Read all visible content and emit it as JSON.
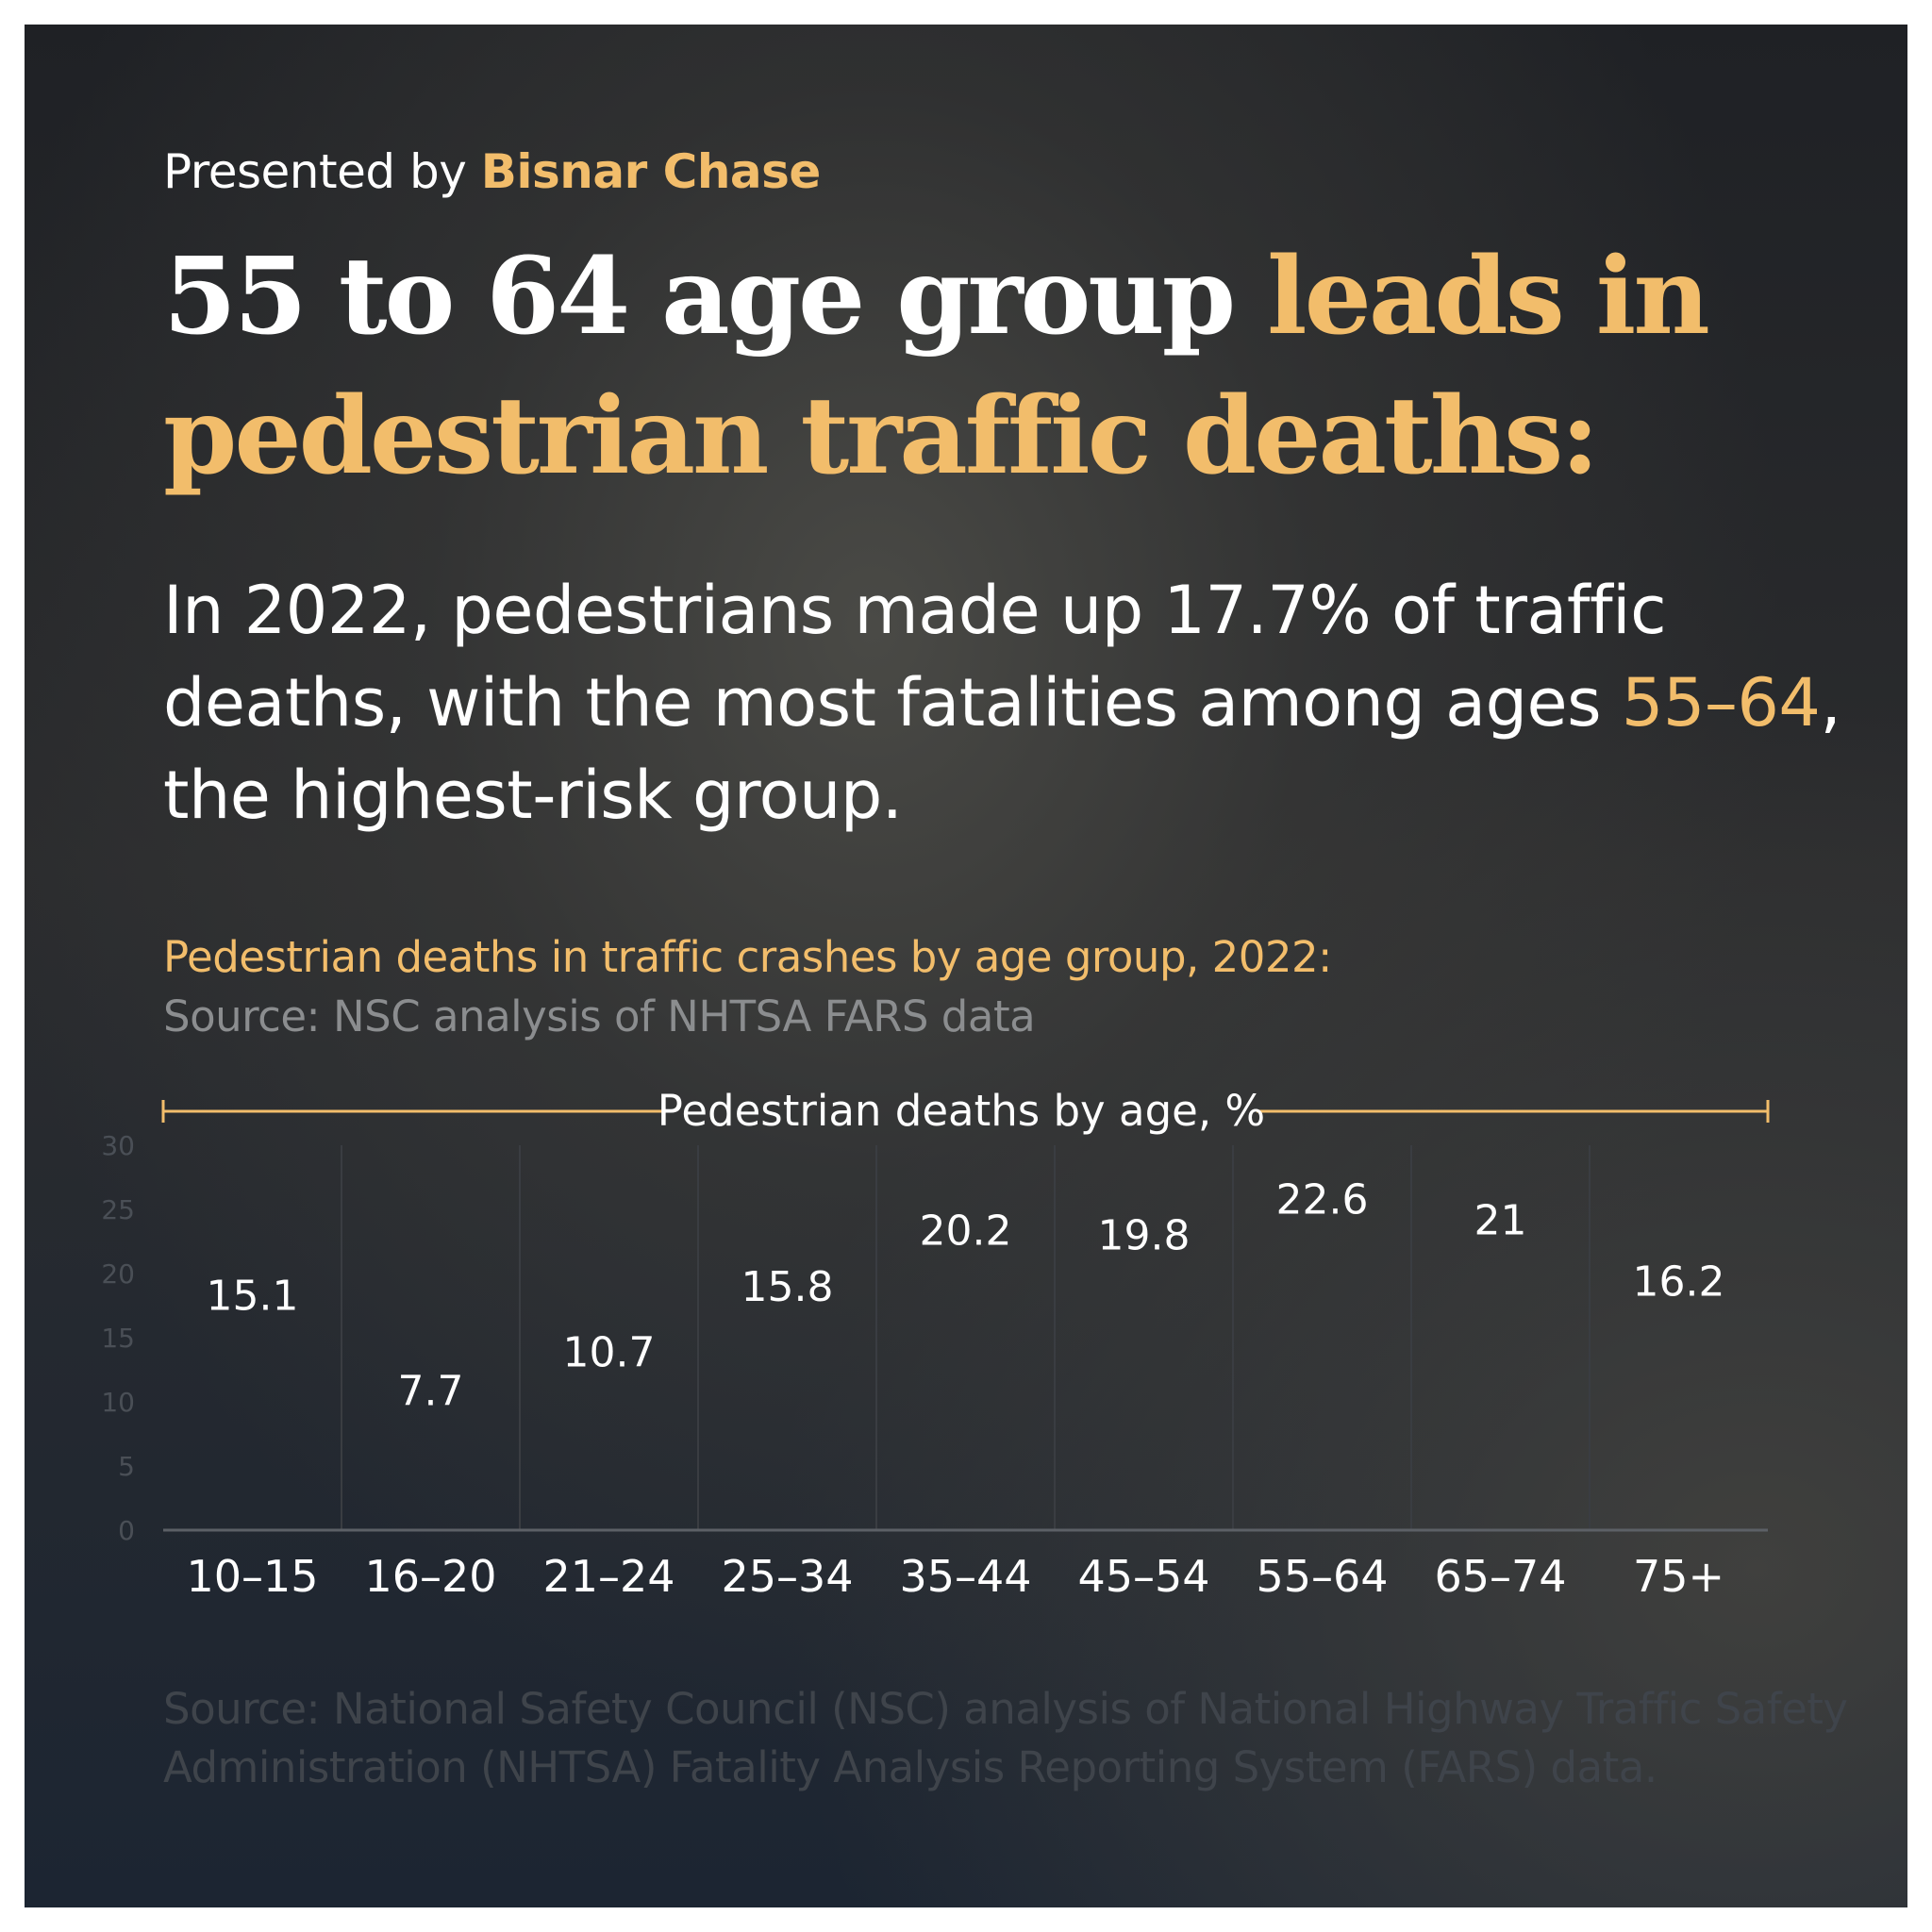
{
  "header": {
    "presented_prefix": "Presented by",
    "brand": "Bisnar Chase",
    "headline_white": "55 to 64 age group",
    "headline_accent": "leads in pedestrian traffic deaths:",
    "sub_part1": "In 2022, pedestrians made up 17.7% of traffic deaths, with the most fatalities among ages",
    "sub_accent": "55–64",
    "sub_part2": ", the highest-risk group."
  },
  "chart_title": "Pedestrian deaths in traffic crashes by age group, 2022:",
  "chart_source": "Source: NSC analysis of NHTSA FARS data",
  "footer": "Source: National Safety Council (NSC) analysis of National Highway Traffic Safety Administration (NHTSA) Fatality Analysis Reporting System (FARS) data.",
  "colors": {
    "accent": "#f2bd6b",
    "bar": "#5bbf3c",
    "text": "#ffffff"
  },
  "chart_data": {
    "type": "bar",
    "title": "Pedestrian deaths by age, %",
    "categories": [
      "10–15",
      "16–20",
      "21–24",
      "25–34",
      "35–44",
      "45–54",
      "55–64",
      "65–74",
      "75+"
    ],
    "values": [
      15.1,
      7.7,
      10.7,
      15.8,
      20.2,
      19.8,
      22.6,
      21,
      16.2
    ],
    "value_labels": [
      "15.1",
      "7.7",
      "10.7",
      "15.8",
      "20.2",
      "19.8",
      "22.6",
      "21",
      "16.2"
    ],
    "ylim": [
      0,
      30
    ],
    "yticks": [
      "0",
      "5",
      "10",
      "15",
      "20",
      "25",
      "30"
    ],
    "grid": "vertical"
  }
}
